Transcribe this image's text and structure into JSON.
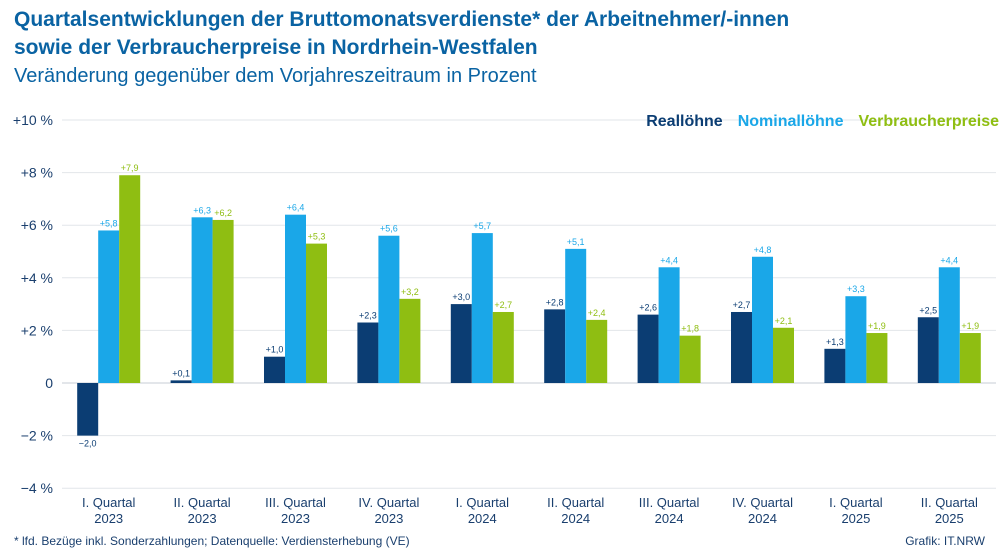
{
  "header": {
    "title_line1": "Quartalsentwicklungen der Bruttomonatsverdienste* der Arbeitnehmer/-innen",
    "title_line2": "sowie der Verbraucherpreise in Nordrhein-Westfalen",
    "subtitle": "Veränderung gegenüber dem Vorjahreszeitraum in Prozent"
  },
  "footer": {
    "footnote": "*  lfd. Bezüge inkl. Sonderzahlungen; Datenquelle: Verdiensterhebung (VE)",
    "credit": "Grafik: IT.NRW"
  },
  "chart_data": {
    "type": "bar",
    "categories": [
      [
        "I. Quartal",
        "2023"
      ],
      [
        "II. Quartal",
        "2023"
      ],
      [
        "III. Quartal",
        "2023"
      ],
      [
        "IV. Quartal",
        "2023"
      ],
      [
        "I. Quartal",
        "2024"
      ],
      [
        "II. Quartal",
        "2024"
      ],
      [
        "III. Quartal",
        "2024"
      ],
      [
        "IV. Quartal",
        "2024"
      ],
      [
        "I. Quartal",
        "2025"
      ],
      [
        "II. Quartal",
        "2025"
      ]
    ],
    "series": [
      {
        "name": "Reallöhne",
        "color": "#0b3d73",
        "values": [
          -2.0,
          0.1,
          1.0,
          2.3,
          3.0,
          2.8,
          2.6,
          2.7,
          1.3,
          2.5
        ],
        "labels": [
          "−2,0",
          "+0,1",
          "+1,0",
          "+2,3",
          "+3,0",
          "+2,8",
          "+2,6",
          "+2,7",
          "+1,3",
          "+2,5"
        ]
      },
      {
        "name": "Nominallöhne",
        "color": "#1aa7e8",
        "values": [
          5.8,
          6.3,
          6.4,
          5.6,
          5.7,
          5.1,
          4.4,
          4.8,
          3.3,
          4.4
        ],
        "labels": [
          "+5,8",
          "+6,3",
          "+6,4",
          "+5,6",
          "+5,7",
          "+5,1",
          "+4,4",
          "+4,8",
          "+3,3",
          "+4,4"
        ]
      },
      {
        "name": "Verbraucherpreise",
        "color": "#8fbe12",
        "values": [
          7.9,
          6.2,
          5.3,
          3.2,
          2.7,
          2.4,
          1.8,
          2.1,
          1.9,
          1.9
        ],
        "labels": [
          "+7,9",
          "+6,2",
          "+5,3",
          "+3,2",
          "+2,7",
          "+2,4",
          "+1,8",
          "+2,1",
          "+1,9",
          "+1,9"
        ]
      }
    ],
    "yticks": [
      10,
      8,
      6,
      4,
      2,
      0,
      -2,
      -4
    ],
    "ytick_labels": [
      "+10 %",
      "+8 %",
      "+6 %",
      "+4 %",
      "+2 %",
      "0",
      "−2 %",
      "−4 %"
    ],
    "ylim": [
      -4,
      10
    ],
    "grid": true,
    "legend_position": "top-right"
  }
}
